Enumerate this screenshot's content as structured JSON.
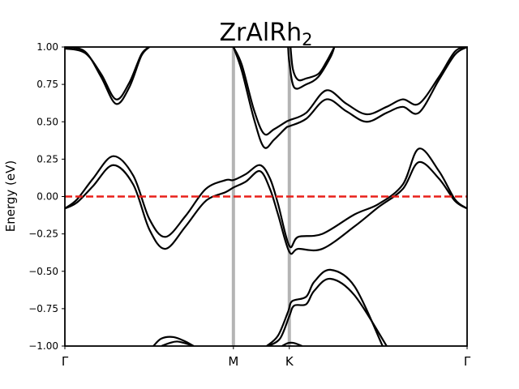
{
  "chart_data": {
    "type": "line",
    "title": "ZrAlRh",
    "title_subscript": "2",
    "xlabel": "",
    "ylabel": "Energy (eV)",
    "ylim": [
      -1.0,
      1.0
    ],
    "xlim": [
      0.0,
      1.0
    ],
    "y_ticks": [
      1.0,
      0.75,
      0.5,
      0.25,
      0.0,
      -0.25,
      -0.5,
      -0.75,
      -1.0
    ],
    "y_tick_labels": [
      "1.00",
      "0.75",
      "0.50",
      "0.25",
      "0.00",
      "−0.25",
      "−0.50",
      "−0.75",
      "−1.00"
    ],
    "x_ticks": [
      0.0,
      0.419,
      0.558,
      1.0
    ],
    "x_tick_labels": [
      "Γ",
      "M",
      "K",
      "Γ"
    ],
    "high_symmetry_lines": [
      0.419,
      0.558
    ],
    "fermi_level": 0.0,
    "colors": {
      "bands": "#000000",
      "fermi": "#e8201a",
      "symmetry": "#b4b4b4"
    },
    "grid": false,
    "series": [
      {
        "x": [
          0.0,
          0.05,
          0.09,
          0.127,
          0.16,
          0.19,
          0.21
        ],
        "values": [
          0.99,
          0.96,
          0.82,
          0.65,
          0.76,
          0.95,
          1.0
        ]
      },
      {
        "x": [
          0.0,
          0.05,
          0.09,
          0.127,
          0.16,
          0.19,
          0.21
        ],
        "values": [
          1.0,
          0.97,
          0.8,
          0.62,
          0.73,
          0.94,
          1.0
        ]
      },
      {
        "x": [
          0.0,
          0.03,
          0.07,
          0.12,
          0.17,
          0.21,
          0.25,
          0.3,
          0.35,
          0.4,
          0.419,
          0.45,
          0.485,
          0.51,
          0.53,
          0.558,
          0.58,
          0.64,
          0.72,
          0.78,
          0.84,
          0.88,
          0.93,
          0.97,
          1.0
        ],
        "values": [
          -0.08,
          -0.02,
          0.12,
          0.27,
          0.14,
          -0.15,
          -0.27,
          -0.13,
          0.05,
          0.11,
          0.11,
          0.15,
          0.21,
          0.12,
          -0.05,
          -0.33,
          -0.27,
          -0.25,
          -0.12,
          -0.05,
          0.08,
          0.32,
          0.17,
          -0.02,
          -0.08
        ]
      },
      {
        "x": [
          0.0,
          0.03,
          0.07,
          0.12,
          0.17,
          0.21,
          0.25,
          0.3,
          0.35,
          0.4,
          0.419,
          0.45,
          0.485,
          0.51,
          0.53,
          0.558,
          0.58,
          0.64,
          0.72,
          0.78,
          0.84,
          0.88,
          0.93,
          0.97,
          1.0
        ],
        "values": [
          -0.08,
          -0.04,
          0.07,
          0.21,
          0.08,
          -0.22,
          -0.35,
          -0.2,
          -0.03,
          0.03,
          0.06,
          0.1,
          0.17,
          0.05,
          -0.12,
          -0.37,
          -0.35,
          -0.35,
          -0.2,
          -0.07,
          0.05,
          0.23,
          0.12,
          -0.03,
          -0.08
        ]
      },
      {
        "x": [
          0.419,
          0.44,
          0.47,
          0.495,
          0.52,
          0.55,
          0.558,
          0.6,
          0.65,
          0.7,
          0.75,
          0.8,
          0.84,
          0.88,
          0.93,
          0.97,
          1.0
        ],
        "values": [
          1.0,
          0.88,
          0.58,
          0.42,
          0.45,
          0.5,
          0.51,
          0.56,
          0.71,
          0.62,
          0.55,
          0.6,
          0.65,
          0.62,
          0.8,
          0.97,
          1.0
        ]
      },
      {
        "x": [
          0.419,
          0.44,
          0.47,
          0.495,
          0.52,
          0.55,
          0.558,
          0.6,
          0.65,
          0.7,
          0.75,
          0.8,
          0.84,
          0.88,
          0.93,
          0.97,
          1.0
        ],
        "values": [
          1.0,
          0.84,
          0.52,
          0.33,
          0.38,
          0.46,
          0.47,
          0.52,
          0.65,
          0.57,
          0.5,
          0.56,
          0.6,
          0.56,
          0.78,
          0.95,
          1.0
        ]
      },
      {
        "x": [
          0.561,
          0.567,
          0.58,
          0.6,
          0.63,
          0.65,
          0.67
        ],
        "values": [
          1.0,
          0.85,
          0.78,
          0.79,
          0.82,
          0.9,
          1.0
        ]
      },
      {
        "x": [
          0.555,
          0.558,
          0.57,
          0.6,
          0.63,
          0.66,
          0.67
        ],
        "values": [
          1.0,
          0.9,
          0.73,
          0.75,
          0.8,
          0.93,
          1.0
        ]
      },
      {
        "x": [
          0.502,
          0.53,
          0.555,
          0.565,
          0.6,
          0.62,
          0.66,
          0.72,
          0.79
        ],
        "values": [
          -1.0,
          -0.93,
          -0.77,
          -0.7,
          -0.67,
          -0.57,
          -0.49,
          -0.6,
          -1.0
        ]
      },
      {
        "x": [
          0.505,
          0.535,
          0.558,
          0.57,
          0.6,
          0.62,
          0.66,
          0.72,
          0.8
        ],
        "values": [
          -1.0,
          -0.95,
          -0.8,
          -0.73,
          -0.72,
          -0.63,
          -0.55,
          -0.66,
          -1.0
        ]
      },
      {
        "x": [
          0.22,
          0.24,
          0.27,
          0.3,
          0.32
        ],
        "values": [
          -1.0,
          -0.95,
          -0.94,
          -0.97,
          -1.0
        ]
      },
      {
        "x": [
          0.24,
          0.26,
          0.28,
          0.31,
          0.32
        ],
        "values": [
          -1.0,
          -0.98,
          -0.97,
          -0.99,
          -1.0
        ]
      },
      {
        "x": [
          0.54,
          0.555,
          0.57,
          0.59
        ],
        "values": [
          -1.0,
          -0.98,
          -0.98,
          -1.0
        ]
      }
    ]
  }
}
